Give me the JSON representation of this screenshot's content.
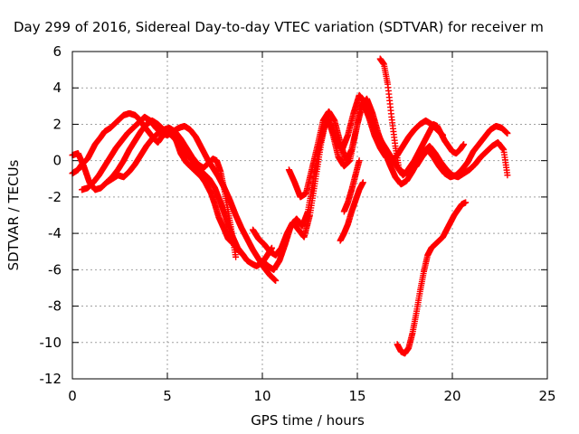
{
  "chart_data": {
    "type": "scatter",
    "title": "Day 299 of 2016, Sidereal Day-to-day VTEC variation (SDTVAR) for receiver m",
    "xlabel": "GPS time / hours",
    "ylabel": "SDTVAR / TECUs",
    "xlim": [
      0,
      25
    ],
    "ylim": [
      -12,
      6
    ],
    "xticks": [
      0,
      5,
      10,
      15,
      20,
      25
    ],
    "yticks": [
      -12,
      -10,
      -8,
      -6,
      -4,
      -2,
      0,
      2,
      4,
      6
    ],
    "grid": true,
    "marker": "plus",
    "color": "#ff0000",
    "series": [
      {
        "x": [
          0.0,
          0.3,
          0.5,
          0.8,
          1.0,
          1.2,
          1.5,
          1.7,
          2.0,
          2.3,
          2.5,
          2.7,
          3.0,
          3.3,
          3.5,
          3.7,
          4.0,
          4.3,
          4.5,
          4.7,
          5.0,
          5.3,
          5.5,
          5.7,
          6.0,
          6.3,
          6.5,
          6.8,
          7.0,
          7.3,
          7.5,
          7.7,
          8.0,
          8.2,
          8.5,
          8.7,
          9.0,
          9.2,
          9.5,
          9.7,
          10.0,
          10.2,
          10.5
        ],
        "y": [
          -0.7,
          -0.5,
          -0.2,
          0.1,
          0.5,
          0.9,
          1.3,
          1.6,
          1.8,
          2.1,
          2.3,
          2.5,
          2.6,
          2.5,
          2.3,
          2.0,
          1.6,
          1.2,
          1.0,
          1.3,
          1.6,
          1.5,
          1.0,
          0.4,
          -0.1,
          -0.4,
          -0.6,
          -0.9,
          -1.2,
          -1.8,
          -2.4,
          -3.1,
          -3.8,
          -4.3,
          -4.6,
          -4.9,
          -5.2,
          -5.5,
          -5.7,
          -5.8,
          -5.6,
          -5.3,
          -4.8
        ]
      },
      {
        "x": [
          0.0,
          0.3,
          0.6,
          0.9,
          1.2,
          1.5,
          1.8,
          2.1,
          2.4,
          2.7,
          3.0,
          3.3,
          3.6,
          3.9,
          4.2,
          4.5,
          4.8,
          5.1,
          5.4,
          5.7,
          6.0,
          6.3,
          6.6,
          6.9,
          7.2,
          7.5,
          7.8,
          8.1,
          8.4,
          8.7,
          9.0
        ],
        "y": [
          0.3,
          0.4,
          -0.3,
          -1.2,
          -1.6,
          -1.5,
          -1.2,
          -0.9,
          -0.5,
          0.0,
          0.6,
          1.1,
          1.6,
          2.0,
          2.2,
          2.0,
          1.7,
          1.5,
          1.2,
          0.8,
          0.4,
          0.0,
          -0.4,
          -0.7,
          -1.0,
          -1.5,
          -2.3,
          -3.2,
          -4.1,
          -4.8,
          -5.2
        ]
      },
      {
        "x": [
          0.5,
          0.8,
          1.1,
          1.4,
          1.7,
          2.0,
          2.3,
          2.6,
          2.9,
          3.2,
          3.5,
          3.8,
          4.1,
          4.4,
          4.7,
          5.0,
          5.3,
          5.6,
          5.9,
          6.2,
          6.5,
          6.8,
          7.1,
          7.4,
          7.7,
          8.0,
          8.3,
          8.6,
          8.9,
          9.2,
          9.5,
          9.8,
          10.1,
          10.4,
          10.7
        ],
        "y": [
          -1.6,
          -1.5,
          -1.2,
          -0.8,
          -0.3,
          0.2,
          0.7,
          1.1,
          1.5,
          1.8,
          2.1,
          2.4,
          2.2,
          1.8,
          1.5,
          1.4,
          1.6,
          1.8,
          1.9,
          1.7,
          1.3,
          0.7,
          0.1,
          -0.4,
          -0.9,
          -1.5,
          -2.2,
          -3.0,
          -3.7,
          -4.3,
          -4.9,
          -5.4,
          -5.9,
          -6.3,
          -6.6
        ]
      },
      {
        "x": [
          1.8,
          2.1,
          2.4,
          2.7,
          3.0,
          3.3,
          3.6,
          3.9,
          4.2,
          4.5,
          4.8,
          5.1,
          5.4,
          5.7,
          6.0,
          6.3,
          6.6,
          6.9,
          7.2,
          7.4,
          7.6,
          7.8,
          8.0,
          8.2,
          8.4,
          8.6
        ],
        "y": [
          -1.2,
          -1.0,
          -0.8,
          -0.9,
          -0.6,
          -0.2,
          0.3,
          0.8,
          1.2,
          1.5,
          1.7,
          1.8,
          1.6,
          1.2,
          0.7,
          0.2,
          -0.2,
          -0.4,
          -0.1,
          0.1,
          0.0,
          -0.6,
          -1.6,
          -2.8,
          -4.0,
          -5.3
        ]
      },
      {
        "x": [
          9.5,
          9.8,
          10.1,
          10.4,
          10.7,
          11.0,
          11.3,
          11.6,
          11.9,
          12.2,
          12.5,
          12.8,
          13.1,
          13.4,
          13.7,
          14.0,
          14.3,
          14.6,
          14.9,
          15.2,
          15.5,
          15.8,
          16.1,
          16.4,
          16.7,
          17.0,
          17.3,
          17.6,
          17.9,
          18.2,
          18.5,
          18.8,
          19.1,
          19.4,
          19.7,
          20.0,
          20.3,
          20.6,
          20.9,
          21.2,
          21.5,
          21.8,
          22.1,
          22.4,
          22.7,
          22.9
        ],
        "y": [
          -3.8,
          -4.3,
          -4.6,
          -5.0,
          -5.2,
          -4.8,
          -4.0,
          -3.4,
          -3.8,
          -4.2,
          -3.0,
          -1.0,
          1.0,
          2.5,
          1.5,
          0.2,
          -0.3,
          0.0,
          1.5,
          3.0,
          3.4,
          2.6,
          1.5,
          0.6,
          -0.2,
          -0.9,
          -1.3,
          -1.1,
          -0.6,
          0.0,
          0.5,
          0.8,
          0.4,
          -0.1,
          -0.5,
          -0.8,
          -0.9,
          -0.7,
          -0.5,
          -0.2,
          0.2,
          0.5,
          0.8,
          1.0,
          0.6,
          -0.8
        ]
      },
      {
        "x": [
          10.0,
          10.3,
          10.6,
          10.9,
          11.2,
          11.5,
          11.8,
          12.1,
          12.4,
          12.7,
          13.0,
          13.3,
          13.6,
          13.9,
          14.2,
          14.5,
          14.8,
          15.1,
          15.4,
          15.7,
          16.0,
          16.3,
          16.6,
          16.9,
          17.2,
          17.5,
          17.8,
          18.1,
          18.4,
          18.7,
          19.0,
          19.3,
          19.6,
          19.9,
          20.2,
          20.5,
          20.8,
          21.1,
          21.4,
          21.7,
          22.0,
          22.3,
          22.6,
          22.9
        ],
        "y": [
          -5.5,
          -5.8,
          -6.0,
          -5.5,
          -4.6,
          -3.6,
          -3.2,
          -3.6,
          -2.8,
          -1.0,
          0.8,
          2.0,
          2.0,
          1.0,
          0.6,
          1.4,
          2.6,
          3.6,
          3.2,
          2.4,
          1.6,
          1.0,
          0.5,
          0.0,
          -0.5,
          -0.7,
          -0.5,
          -0.3,
          0.2,
          0.6,
          0.2,
          -0.3,
          -0.7,
          -0.9,
          -0.8,
          -0.5,
          -0.1,
          0.5,
          0.9,
          1.3,
          1.7,
          1.9,
          1.8,
          1.5
        ]
      },
      {
        "x": [
          11.4,
          11.7,
          12.0,
          12.3,
          12.6,
          12.9,
          13.2,
          13.5,
          13.8,
          14.1,
          14.4,
          14.7,
          15.0,
          15.3,
          15.6,
          15.9,
          16.2,
          16.5,
          16.8,
          17.1,
          17.4,
          17.7,
          18.0,
          18.3,
          18.6,
          18.9,
          19.2,
          19.5
        ],
        "y": [
          -0.5,
          -1.2,
          -2.0,
          -1.8,
          -0.5,
          0.8,
          2.2,
          2.7,
          2.2,
          1.0,
          0.0,
          0.6,
          2.0,
          3.2,
          2.4,
          1.4,
          0.7,
          0.2,
          0.0,
          0.3,
          0.8,
          1.3,
          1.7,
          2.0,
          2.2,
          2.0,
          1.7,
          1.4
        ]
      },
      {
        "x": [
          14.1,
          14.3,
          14.5,
          14.7,
          14.9,
          15.1,
          15.3
        ],
        "y": [
          -4.4,
          -4.0,
          -3.5,
          -2.8,
          -2.2,
          -1.6,
          -1.2
        ]
      },
      {
        "x": [
          14.3,
          14.5,
          14.7,
          14.9,
          15.1
        ],
        "y": [
          -2.8,
          -2.3,
          -1.6,
          -0.8,
          0.0
        ]
      },
      {
        "x": [
          16.2,
          16.4,
          16.6,
          16.8,
          17.0,
          17.2,
          17.4,
          17.6,
          17.8,
          18.0,
          18.2,
          18.4,
          18.6,
          18.8,
          19.0,
          19.2,
          19.4,
          19.6,
          19.8,
          20.0,
          20.2,
          20.4,
          20.6
        ],
        "y": [
          5.6,
          5.3,
          4.2,
          2.4,
          0.8,
          -0.5,
          -0.8,
          -0.6,
          -0.3,
          0.0,
          0.4,
          0.8,
          1.2,
          1.6,
          2.0,
          1.9,
          1.5,
          1.1,
          0.8,
          0.5,
          0.4,
          0.6,
          0.9
        ]
      },
      {
        "x": [
          17.1,
          17.3,
          17.5,
          17.7,
          17.9,
          18.1,
          18.3,
          18.5,
          18.7,
          18.9,
          19.1,
          19.3,
          19.5,
          19.7,
          19.9,
          20.1,
          20.3,
          20.5,
          20.7
        ],
        "y": [
          -10.1,
          -10.5,
          -10.6,
          -10.3,
          -9.5,
          -8.4,
          -7.2,
          -6.1,
          -5.2,
          -4.8,
          -4.6,
          -4.4,
          -4.2,
          -3.8,
          -3.4,
          -3.0,
          -2.7,
          -2.4,
          -2.3
        ]
      }
    ]
  }
}
